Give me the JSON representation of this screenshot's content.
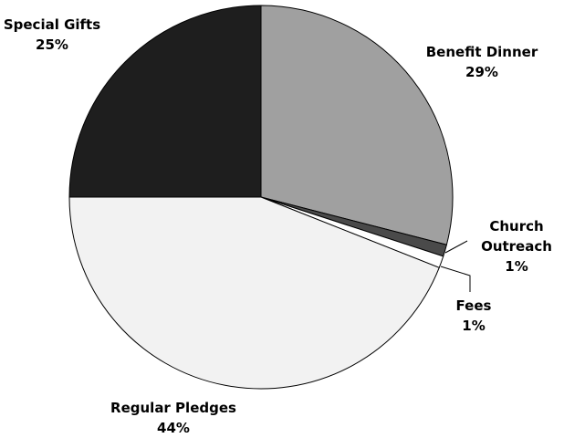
{
  "chart_data": {
    "type": "pie",
    "title": "",
    "slices": [
      {
        "label": "Benefit Dinner",
        "label_lines": [
          "Benefit Dinner"
        ],
        "value": 29,
        "value_label": "29%",
        "color": "#a0a0a0"
      },
      {
        "label": "Church Outreach",
        "label_lines": [
          "Church",
          "Outreach"
        ],
        "value": 1,
        "value_label": "1%",
        "color": "#4a4a4a"
      },
      {
        "label": "Fees",
        "label_lines": [
          "Fees"
        ],
        "value": 1,
        "value_label": "1%",
        "color": "#ffffff"
      },
      {
        "label": "Regular Pledges",
        "label_lines": [
          "Regular Pledges"
        ],
        "value": 44,
        "value_label": "44%",
        "color": "#f2f2f2"
      },
      {
        "label": "Special Gifts",
        "label_lines": [
          "Special Gifts"
        ],
        "value": 25,
        "value_label": "25%",
        "color": "#1e1e1e"
      }
    ],
    "start_angle_deg": 0,
    "direction": "clockwise",
    "legend": "none",
    "labels_outside": true
  }
}
